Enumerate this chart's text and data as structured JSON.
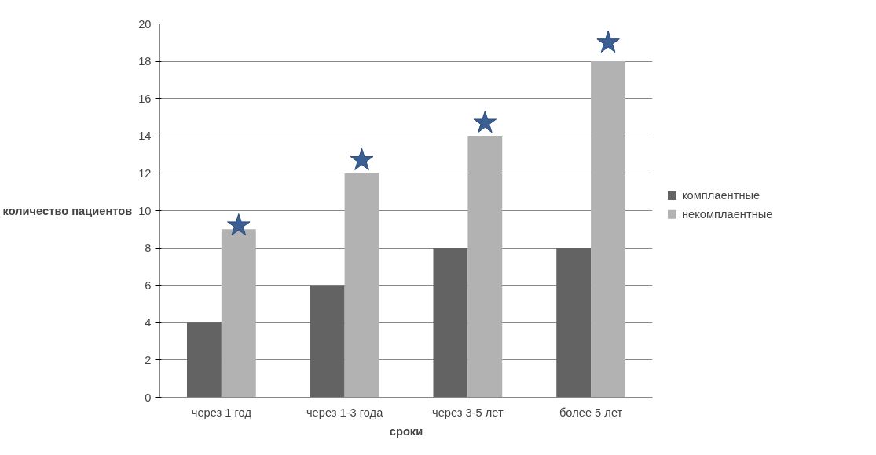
{
  "chart_data": {
    "type": "bar",
    "xlabel": "сроки",
    "ylabel": "количество пациентов",
    "categories": [
      "через 1 год",
      "через 1-3 года",
      "через 3-5 лет",
      "более 5 лет"
    ],
    "series": [
      {
        "name": "комплаентные",
        "color": "#636363",
        "values": [
          4,
          6,
          8,
          8
        ]
      },
      {
        "name": "некомплаентные",
        "color": "#b2b2b2",
        "values": [
          9,
          12,
          14,
          18
        ]
      },
      {
        "type": "scatter",
        "marker": "star",
        "color": "#3b5e93",
        "values": [
          9.2,
          12.7,
          14.7,
          19
        ]
      }
    ],
    "ylim": [
      0,
      20
    ],
    "yticks": [
      0,
      2,
      4,
      6,
      8,
      10,
      12,
      14,
      16,
      18,
      20
    ],
    "grid": "y",
    "legend": "right"
  }
}
